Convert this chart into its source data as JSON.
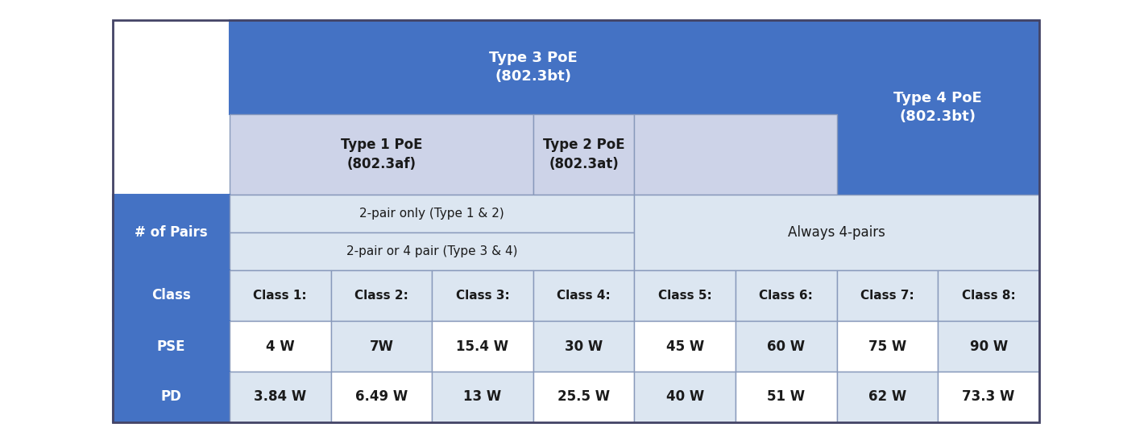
{
  "fig_width": 14.25,
  "fig_height": 5.47,
  "dpi": 100,
  "bg_color": "#ffffff",
  "colors": {
    "med_blue": "#4472c4",
    "light_lavender": "#cdd3e8",
    "lighter_lavender": "#dce6f1",
    "white": "#ffffff",
    "dark_text": "#1a1a1a",
    "border_dark": "#555555",
    "border_light": "#8899bb"
  },
  "type3_label": "Type 3 PoE\n(802.3bt)",
  "type4_label": "Type 4 PoE\n(802.3bt)",
  "type1_label": "Type 1 PoE\n(802.3af)",
  "type2_label": "Type 2 PoE\n(802.3at)",
  "pairs_label": "# of Pairs",
  "pairs_2only": "2-pair only (Type 1 & 2)",
  "pairs_24": "2-pair or 4 pair (Type 3 & 4)",
  "pairs_always4": "Always 4-pairs",
  "class_label": "Class",
  "classes": [
    "Class 1:",
    "Class 2:",
    "Class 3:",
    "Class 4:",
    "Class 5:",
    "Class 6:",
    "Class 7:",
    "Class 8:"
  ],
  "pse_label": "PSE",
  "pse_values": [
    "4 W",
    "7W",
    "15.4 W",
    "30 W",
    "45 W",
    "60 W",
    "75 W",
    "90 W"
  ],
  "pd_label": "PD",
  "pd_values": [
    "3.84 W",
    "6.49 W",
    "13 W",
    "25.5 W",
    "40 W",
    "51 W",
    "62 W",
    "73.3 W"
  ]
}
